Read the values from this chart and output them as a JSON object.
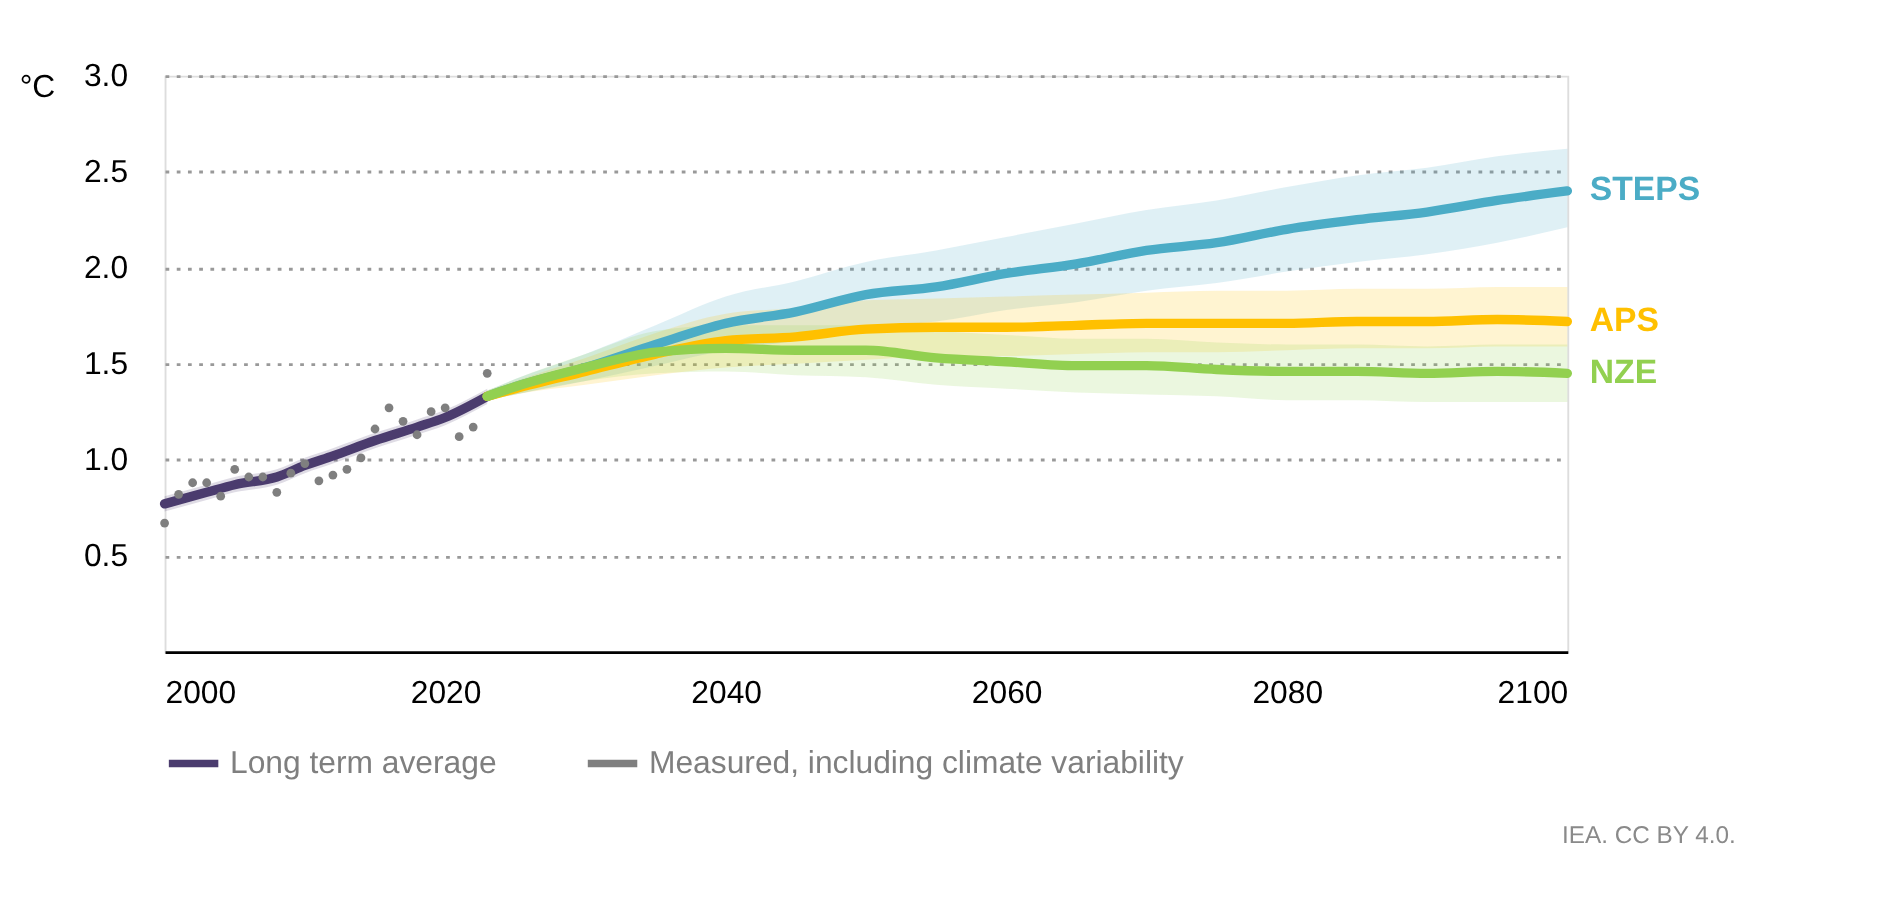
{
  "chart_data": {
    "type": "line",
    "ylabel": "°C",
    "xlim": [
      2000,
      2100
    ],
    "xticks": [
      2000,
      2020,
      2040,
      2060,
      2080,
      2100
    ],
    "ylim": [
      0,
      3.0
    ],
    "yticks": [
      {
        "value": 0.5,
        "label": "0.5"
      },
      {
        "value": 1.0,
        "label": "1.0"
      },
      {
        "value": 1.5,
        "label": "1.5"
      },
      {
        "value": 2.0,
        "label": "2.0"
      },
      {
        "value": 2.5,
        "label": "2.5"
      },
      {
        "value": 3.0,
        "label": "3.0"
      }
    ],
    "grid": "y",
    "legend": "bottom",
    "line_style": "solid",
    "annotations": [
      "IEA. CC BY 4.0."
    ],
    "series": [
      {
        "name": "Long term average",
        "color": "#4b3c6e",
        "x": [
          2000,
          2003,
          2005,
          2008,
          2010,
          2012,
          2015,
          2018,
          2020,
          2023
        ],
        "values": [
          0.77,
          0.83,
          0.87,
          0.91,
          0.97,
          1.02,
          1.1,
          1.17,
          1.22,
          1.33
        ],
        "lower": [
          0.73,
          0.79,
          0.83,
          0.87,
          0.93,
          0.98,
          1.06,
          1.13,
          1.18,
          1.29
        ],
        "upper": [
          0.81,
          0.87,
          0.91,
          0.95,
          1.01,
          1.06,
          1.14,
          1.21,
          1.26,
          1.37
        ]
      },
      {
        "name": "Measured, including climate variability",
        "type": "scatter",
        "marker": "circle",
        "color": "#7f7f7f",
        "x": [
          2000,
          2001,
          2002,
          2003,
          2004,
          2005,
          2006,
          2007,
          2008,
          2009,
          2010,
          2011,
          2012,
          2013,
          2014,
          2015,
          2016,
          2017,
          2018,
          2019,
          2020,
          2021,
          2022,
          2023
        ],
        "values": [
          0.67,
          0.82,
          0.88,
          0.88,
          0.81,
          0.95,
          0.91,
          0.91,
          0.83,
          0.93,
          0.98,
          0.89,
          0.92,
          0.95,
          1.01,
          1.16,
          1.27,
          1.2,
          1.13,
          1.25,
          1.27,
          1.12,
          1.17,
          1.45
        ]
      },
      {
        "name": "STEPS",
        "color": "#4bacc6",
        "x": [
          2023,
          2025,
          2030,
          2035,
          2040,
          2045,
          2050,
          2055,
          2060,
          2065,
          2070,
          2075,
          2080,
          2085,
          2090,
          2095,
          2100
        ],
        "values": [
          1.33,
          1.38,
          1.48,
          1.6,
          1.71,
          1.77,
          1.86,
          1.9,
          1.97,
          2.02,
          2.09,
          2.13,
          2.2,
          2.25,
          2.29,
          2.35,
          2.4
        ],
        "lower": [
          1.31,
          1.34,
          1.41,
          1.49,
          1.57,
          1.62,
          1.69,
          1.72,
          1.78,
          1.82,
          1.88,
          1.92,
          1.98,
          2.03,
          2.07,
          2.13,
          2.21
        ],
        "upper": [
          1.36,
          1.42,
          1.55,
          1.7,
          1.85,
          1.93,
          2.03,
          2.09,
          2.16,
          2.23,
          2.3,
          2.35,
          2.42,
          2.48,
          2.52,
          2.58,
          2.62
        ]
      },
      {
        "name": "APS",
        "color": "#ffc000",
        "x": [
          2023,
          2025,
          2030,
          2035,
          2040,
          2045,
          2050,
          2055,
          2060,
          2065,
          2070,
          2075,
          2080,
          2085,
          2090,
          2095,
          2100
        ],
        "values": [
          1.33,
          1.37,
          1.46,
          1.55,
          1.62,
          1.64,
          1.68,
          1.69,
          1.69,
          1.7,
          1.71,
          1.71,
          1.71,
          1.72,
          1.72,
          1.73,
          1.72
        ],
        "lower": [
          1.31,
          1.34,
          1.39,
          1.44,
          1.48,
          1.5,
          1.52,
          1.54,
          1.54,
          1.55,
          1.56,
          1.56,
          1.57,
          1.58,
          1.58,
          1.59,
          1.59
        ],
        "upper": [
          1.36,
          1.41,
          1.53,
          1.66,
          1.76,
          1.79,
          1.83,
          1.84,
          1.85,
          1.86,
          1.87,
          1.88,
          1.88,
          1.89,
          1.89,
          1.9,
          1.9
        ]
      },
      {
        "name": "NZE",
        "color": "#92d050",
        "x": [
          2023,
          2025,
          2030,
          2035,
          2040,
          2045,
          2050,
          2055,
          2060,
          2065,
          2070,
          2075,
          2080,
          2085,
          2090,
          2095,
          2100
        ],
        "values": [
          1.33,
          1.38,
          1.48,
          1.56,
          1.58,
          1.57,
          1.57,
          1.53,
          1.51,
          1.49,
          1.49,
          1.47,
          1.46,
          1.46,
          1.45,
          1.46,
          1.45
        ],
        "lower": [
          1.31,
          1.34,
          1.41,
          1.45,
          1.46,
          1.44,
          1.43,
          1.39,
          1.37,
          1.35,
          1.34,
          1.33,
          1.31,
          1.31,
          1.3,
          1.3,
          1.3
        ],
        "upper": [
          1.36,
          1.42,
          1.55,
          1.67,
          1.7,
          1.7,
          1.7,
          1.67,
          1.65,
          1.63,
          1.63,
          1.61,
          1.6,
          1.6,
          1.59,
          1.6,
          1.6
        ]
      }
    ]
  }
}
